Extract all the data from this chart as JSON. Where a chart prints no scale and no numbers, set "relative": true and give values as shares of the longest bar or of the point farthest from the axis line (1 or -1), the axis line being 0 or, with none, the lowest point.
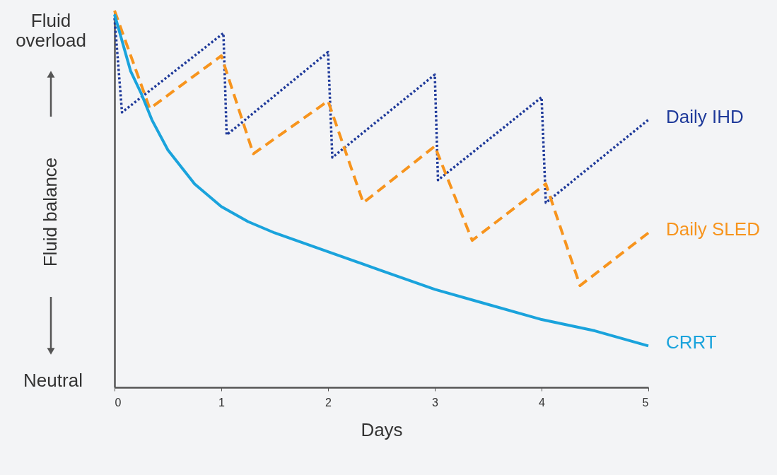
{
  "chart_data": {
    "type": "line",
    "relative": true,
    "xlabel": "Days",
    "ylabel": "Fluid balance",
    "xlim": [
      0,
      5
    ],
    "xticks": [
      0,
      1,
      2,
      3,
      4,
      5
    ],
    "grid": false,
    "legend": false,
    "marker": "none",
    "annotations": [
      "Fluid overload",
      "Neutral"
    ],
    "series": [
      {
        "name": "Daily IHD",
        "color": "#1f3a9a",
        "line_style": "dotted",
        "x": [
          0,
          0.07,
          1.02,
          1.05,
          2.0,
          2.04,
          3.0,
          3.03,
          4.0,
          4.04,
          5
        ],
        "values": [
          0.98,
          0.73,
          0.94,
          0.67,
          0.89,
          0.61,
          0.83,
          0.55,
          0.77,
          0.49,
          0.71
        ]
      },
      {
        "name": "Daily SLED",
        "color": "#f7941d",
        "line_style": "dashed",
        "x": [
          0,
          0.33,
          1.0,
          1.3,
          2.0,
          2.33,
          3.0,
          3.35,
          4.04,
          4.36,
          5
        ],
        "values": [
          1.0,
          0.74,
          0.88,
          0.62,
          0.76,
          0.49,
          0.64,
          0.39,
          0.54,
          0.27,
          0.41
        ]
      },
      {
        "name": "CRRT",
        "color": "#1aa3dc",
        "line_style": "solid",
        "x": [
          0,
          0.05,
          0.1,
          0.15,
          0.25,
          0.35,
          0.5,
          0.75,
          1,
          1.25,
          1.5,
          2,
          2.5,
          3,
          3.5,
          4,
          4.5,
          5
        ],
        "values": [
          0.99,
          0.94,
          0.89,
          0.84,
          0.78,
          0.71,
          0.63,
          0.54,
          0.48,
          0.44,
          0.41,
          0.36,
          0.31,
          0.26,
          0.22,
          0.18,
          0.15,
          0.11
        ]
      }
    ]
  }
}
